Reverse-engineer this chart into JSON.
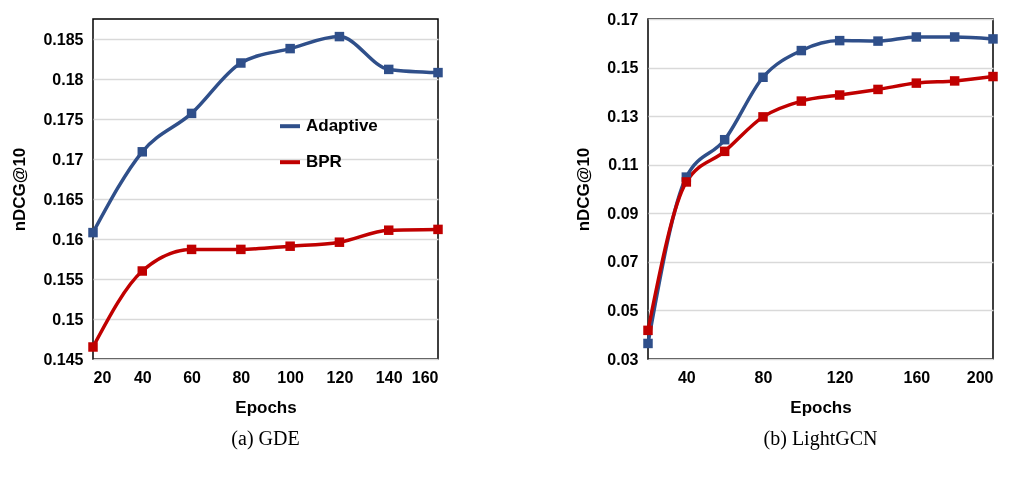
{
  "chart_data": [
    {
      "type": "line",
      "title": "(a)  GDE",
      "xlabel": "Epochs",
      "ylabel": "nDCG@10",
      "x": [
        20,
        40,
        60,
        80,
        100,
        120,
        140,
        160
      ],
      "xlim": [
        20,
        160
      ],
      "xticks": [
        20,
        40,
        60,
        80,
        100,
        120,
        140,
        160
      ],
      "ylim": [
        0.145,
        0.1875
      ],
      "yticks": [
        0.145,
        0.15,
        0.155,
        0.16,
        0.165,
        0.17,
        0.175,
        0.18,
        0.185
      ],
      "grid": "y",
      "legend": "right",
      "marker": "square",
      "line_style": "solid",
      "series": [
        {
          "name": "Adaptive",
          "color": "#2f4f8a",
          "values": [
            0.1608,
            0.1709,
            0.1757,
            0.182,
            0.1838,
            0.1853,
            0.1812,
            0.1808
          ]
        },
        {
          "name": "BPR",
          "color": "#c00000",
          "values": [
            0.1465,
            0.156,
            0.1587,
            0.1587,
            0.1591,
            0.1596,
            0.1611,
            0.1612
          ]
        }
      ]
    },
    {
      "type": "line",
      "title": "(b)  LightGCN",
      "xlabel": "Epochs",
      "ylabel": "nDCG@10",
      "x": [
        20,
        40,
        60,
        80,
        100,
        120,
        140,
        160,
        180,
        200
      ],
      "xlim": [
        20,
        200
      ],
      "xticks": [
        40,
        80,
        120,
        160,
        200
      ],
      "ylim": [
        0.03,
        0.17
      ],
      "yticks": [
        0.03,
        0.05,
        0.07,
        0.09,
        0.11,
        0.13,
        0.15,
        0.17
      ],
      "grid": "y",
      "legend": "right",
      "marker": "square",
      "line_style": "solid",
      "series": [
        {
          "name": "Adaptive",
          "color": "#2f4f8a",
          "values": [
            0.0364,
            0.1049,
            0.1203,
            0.146,
            0.157,
            0.1611,
            0.1609,
            0.1626,
            0.1626,
            0.1618
          ]
        },
        {
          "name": "BPR",
          "color": "#c00000",
          "values": [
            0.0418,
            0.1029,
            0.1155,
            0.1297,
            0.1362,
            0.1387,
            0.141,
            0.1436,
            0.1445,
            0.1463
          ]
        }
      ]
    }
  ]
}
